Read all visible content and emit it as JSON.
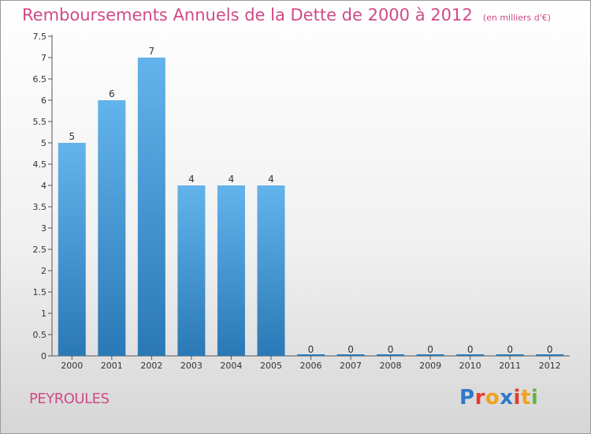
{
  "header": {
    "title": "Remboursements Annuels de la Dette de 2000 à 2012",
    "unit": "(en milliers d'€)"
  },
  "footer": {
    "commune": "PEYROULES",
    "logo": [
      "P",
      "r",
      "o",
      "x",
      "i",
      "t",
      "i"
    ]
  },
  "colors": {
    "title": "#d14a87",
    "bar_top": "#63b3ec",
    "bar_bottom": "#2a79b6",
    "logo": [
      "#2e78c8",
      "#e63b2e",
      "#f0a21b",
      "#2e78c8",
      "#e63b2e",
      "#f0a21b",
      "#64b246"
    ]
  },
  "chart_data": {
    "type": "bar",
    "categories": [
      "2000",
      "2001",
      "2002",
      "2003",
      "2004",
      "2005",
      "2006",
      "2007",
      "2008",
      "2009",
      "2010",
      "2011",
      "2012"
    ],
    "values": [
      5,
      6,
      7,
      4,
      4,
      4,
      0,
      0,
      0,
      0,
      0,
      0,
      0
    ],
    "data_labels": [
      "5",
      "6",
      "7",
      "4",
      "4",
      "4",
      "0",
      "0",
      "0",
      "0",
      "0",
      "0",
      "0"
    ],
    "y_ticks": [
      "0",
      "0.5",
      "1",
      "1.5",
      "2",
      "2.5",
      "3",
      "3.5",
      "4",
      "4.5",
      "5",
      "5.5",
      "6",
      "6.5",
      "7",
      "7.5"
    ],
    "ylim": [
      0,
      7.5
    ],
    "grid": false,
    "xlabel": "",
    "ylabel": ""
  }
}
